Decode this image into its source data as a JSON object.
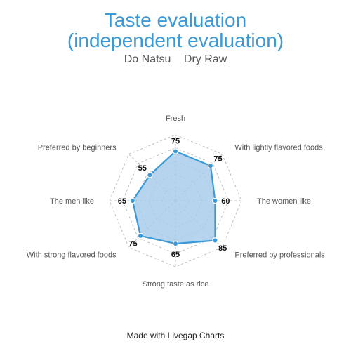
{
  "header": {
    "title_line1": "Taste evaluation",
    "title_line2": "(independent evaluation)",
    "subtitle_left": "Do Natsu",
    "subtitle_right": "Dry Raw"
  },
  "footer": {
    "credit": "Made with Livegap Charts"
  },
  "colors": {
    "accent": "#3a9ad9",
    "fill": "#a9cdea",
    "grid": "#bdbdbd",
    "label": "#555555",
    "value": "#111111"
  },
  "chart_data": {
    "type": "radar",
    "categories": [
      "Fresh",
      "With lightly flavored foods",
      "The women like",
      "Preferred by professionals",
      "Strong taste as rice",
      "With strong flavored foods",
      "The men like",
      "Preferred by beginners"
    ],
    "series": [
      {
        "values": [
          75,
          75,
          60,
          85,
          65,
          75,
          65,
          55
        ]
      }
    ],
    "rlim": [
      0,
      100
    ],
    "grid_levels": [
      20,
      40,
      60,
      80,
      100
    ],
    "grid": true,
    "data_labels": true
  }
}
